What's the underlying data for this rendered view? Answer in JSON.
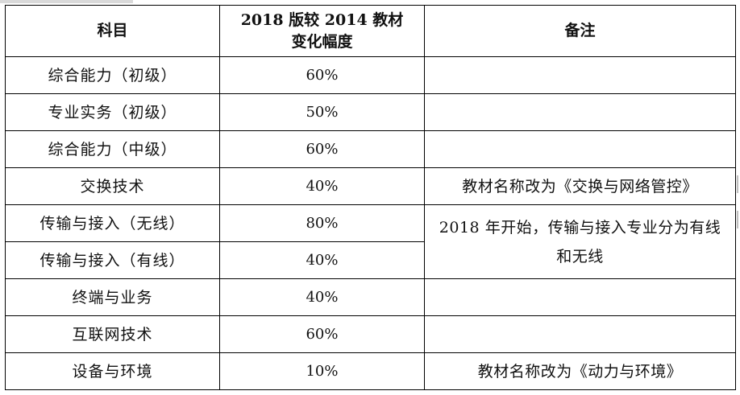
{
  "table": {
    "header": {
      "subject": "科目",
      "change_line1": "2018 版较 2014 教材",
      "change_line2": "变化幅度",
      "note": "备注"
    },
    "rows": [
      {
        "subject": "综合能力（初级）",
        "change": "60%",
        "note": ""
      },
      {
        "subject": "专业实务（初级）",
        "change": "50%",
        "note": ""
      },
      {
        "subject": "综合能力（中级）",
        "change": "60%",
        "note": ""
      },
      {
        "subject": "交换技术",
        "change": "40%",
        "note": "教材名称改为《交换与网络管控》"
      },
      {
        "subject": "传输与接入（无线）",
        "change": "80%",
        "note": "2018 年开始，传输与接入专业分为有线和无线"
      },
      {
        "subject": "传输与接入（有线）",
        "change": "40%",
        "note": ""
      },
      {
        "subject": "终端与业务",
        "change": "40%",
        "note": ""
      },
      {
        "subject": "互联网技术",
        "change": "60%",
        "note": ""
      },
      {
        "subject": "设备与环境",
        "change": "10%",
        "note": "教材名称改为《动力与环境》"
      }
    ]
  }
}
